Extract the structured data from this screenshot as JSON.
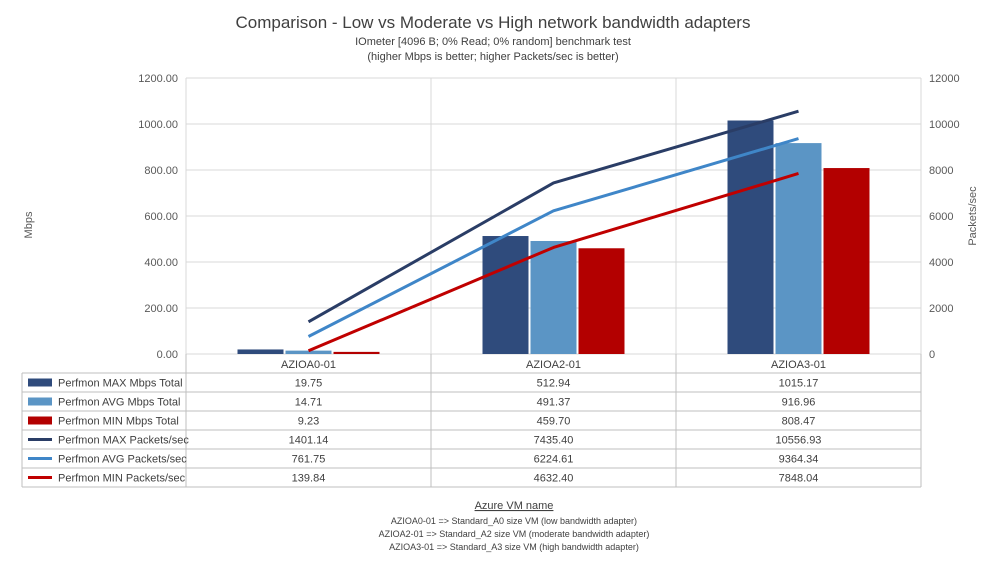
{
  "chart_data": {
    "type": "bar",
    "title": "Comparison - Low vs Moderate vs High network bandwidth adapters",
    "subtitle": [
      "IOmeter [4096 B; 0% Read; 0% random] benchmark test",
      "(higher Mbps is better; higher Packets/sec is better)"
    ],
    "xlabel": "Azure VM name",
    "ylabel": "Mbps",
    "y2label": "Packets/sec",
    "ylim": [
      0,
      1200
    ],
    "y2lim": [
      0,
      12000
    ],
    "yticks": [
      "0.00",
      "200.00",
      "400.00",
      "600.00",
      "800.00",
      "1000.00",
      "1200.00"
    ],
    "y2ticks": [
      "0",
      "2000",
      "4000",
      "6000",
      "8000",
      "10000",
      "12000"
    ],
    "categories": [
      "AZIOA0-01",
      "AZIOA2-01",
      "AZIOA3-01"
    ],
    "grid": true,
    "legend": "data table below chart",
    "series": [
      {
        "name": "Perfmon MAX Mbps Total",
        "type": "bar",
        "axis": "left",
        "color": "#2f4b7c",
        "values": [
          19.75,
          512.94,
          1015.17
        ],
        "labels": [
          "19.75",
          "512.94",
          "1015.17"
        ]
      },
      {
        "name": "Perfmon AVG Mbps Total",
        "type": "bar",
        "axis": "left",
        "color": "#5b95c5",
        "values": [
          14.71,
          491.37,
          916.96
        ],
        "labels": [
          "14.71",
          "491.37",
          "916.96"
        ]
      },
      {
        "name": "Perfmon MIN Mbps Total",
        "type": "bar",
        "axis": "left",
        "color": "#b30000",
        "values": [
          9.23,
          459.7,
          808.47
        ],
        "labels": [
          "9.23",
          "459.70",
          "808.47"
        ]
      },
      {
        "name": "Perfmon MAX Packets/sec",
        "type": "line",
        "axis": "right",
        "color": "#2a3d66",
        "values": [
          1401.14,
          7435.4,
          10556.93
        ],
        "labels": [
          "1401.14",
          "7435.40",
          "10556.93"
        ]
      },
      {
        "name": "Perfmon AVG Packets/sec",
        "type": "line",
        "axis": "right",
        "color": "#3f86c8",
        "values": [
          761.75,
          6224.61,
          9364.34
        ],
        "labels": [
          "761.75",
          "6224.61",
          "9364.34"
        ]
      },
      {
        "name": "Perfmon MIN Packets/sec",
        "type": "line",
        "axis": "right",
        "color": "#c00000",
        "values": [
          139.84,
          4632.4,
          7848.04
        ],
        "labels": [
          "139.84",
          "4632.40",
          "7848.04"
        ]
      }
    ],
    "notes": [
      "AZIOA0-01 => Standard_A0 size VM (low bandwidth adapter)",
      "AZIOA2-01 => Standard_A2 size VM (moderate bandwidth adapter)",
      "AZIOA3-01 => Standard_A3 size VM (high bandwidth adapter)"
    ]
  }
}
